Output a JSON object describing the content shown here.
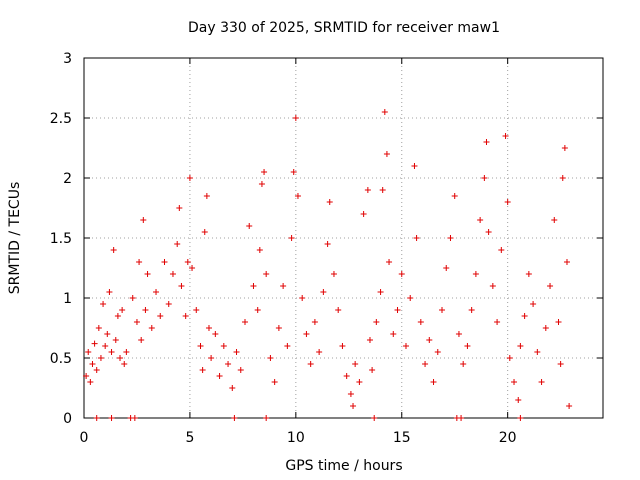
{
  "chart_data": {
    "type": "scatter",
    "title": "Day 330 of 2025, SRMTID for receiver maw1",
    "xlabel": "GPS time / hours",
    "ylabel": "SRMTID / TECUs",
    "xlim": [
      0,
      24.5
    ],
    "ylim": [
      0,
      3
    ],
    "xticks": [
      0,
      5,
      10,
      15,
      20
    ],
    "xtick_labels": [
      "0",
      "5",
      "10",
      "15",
      "20"
    ],
    "yticks": [
      0,
      0.5,
      1,
      1.5,
      2,
      2.5,
      3
    ],
    "ytick_labels": [
      "0",
      "0.5",
      "1",
      "1.5",
      "2",
      "2.5",
      "3"
    ],
    "grid": true,
    "marker": "+",
    "series": [
      {
        "name": "SRMTID",
        "color": "#e00000",
        "points": [
          [
            0.1,
            0.35
          ],
          [
            0.2,
            0.55
          ],
          [
            0.3,
            0.3
          ],
          [
            0.4,
            0.45
          ],
          [
            0.5,
            0.62
          ],
          [
            0.6,
            0.4
          ],
          [
            0.7,
            0.75
          ],
          [
            0.8,
            0.5
          ],
          [
            0.9,
            0.95
          ],
          [
            1.0,
            0.6
          ],
          [
            1.1,
            0.7
          ],
          [
            1.2,
            1.05
          ],
          [
            1.3,
            0.55
          ],
          [
            1.4,
            1.4
          ],
          [
            1.5,
            0.65
          ],
          [
            1.6,
            0.85
          ],
          [
            1.7,
            0.5
          ],
          [
            1.8,
            0.9
          ],
          [
            1.9,
            0.45
          ],
          [
            2.0,
            0.55
          ],
          [
            2.3,
            1.0
          ],
          [
            2.5,
            0.8
          ],
          [
            2.6,
            1.3
          ],
          [
            2.7,
            0.65
          ],
          [
            2.8,
            1.65
          ],
          [
            2.9,
            0.9
          ],
          [
            3.0,
            1.2
          ],
          [
            3.2,
            0.75
          ],
          [
            3.4,
            1.05
          ],
          [
            3.6,
            0.85
          ],
          [
            3.8,
            1.3
          ],
          [
            4.0,
            0.95
          ],
          [
            4.2,
            1.2
          ],
          [
            4.4,
            1.45
          ],
          [
            4.5,
            1.75
          ],
          [
            4.6,
            1.1
          ],
          [
            4.8,
            0.85
          ],
          [
            4.9,
            1.3
          ],
          [
            5.0,
            2.0
          ],
          [
            5.1,
            1.25
          ],
          [
            5.3,
            0.9
          ],
          [
            5.5,
            0.6
          ],
          [
            5.6,
            0.4
          ],
          [
            5.7,
            1.55
          ],
          [
            5.8,
            1.85
          ],
          [
            5.9,
            0.75
          ],
          [
            6.0,
            0.5
          ],
          [
            6.2,
            0.7
          ],
          [
            6.4,
            0.35
          ],
          [
            6.6,
            0.6
          ],
          [
            6.8,
            0.45
          ],
          [
            7.0,
            0.25
          ],
          [
            7.2,
            0.55
          ],
          [
            7.4,
            0.4
          ],
          [
            7.6,
            0.8
          ],
          [
            7.8,
            1.6
          ],
          [
            8.0,
            1.1
          ],
          [
            8.2,
            0.9
          ],
          [
            8.3,
            1.4
          ],
          [
            8.4,
            1.95
          ],
          [
            8.5,
            2.05
          ],
          [
            8.6,
            1.2
          ],
          [
            8.8,
            0.5
          ],
          [
            9.0,
            0.3
          ],
          [
            9.2,
            0.75
          ],
          [
            9.4,
            1.1
          ],
          [
            9.6,
            0.6
          ],
          [
            9.8,
            1.5
          ],
          [
            9.9,
            2.05
          ],
          [
            10.0,
            2.5
          ],
          [
            10.1,
            1.85
          ],
          [
            10.3,
            1.0
          ],
          [
            10.5,
            0.7
          ],
          [
            10.7,
            0.45
          ],
          [
            10.9,
            0.8
          ],
          [
            11.1,
            0.55
          ],
          [
            11.3,
            1.05
          ],
          [
            11.5,
            1.45
          ],
          [
            11.6,
            1.8
          ],
          [
            11.8,
            1.2
          ],
          [
            12.0,
            0.9
          ],
          [
            12.2,
            0.6
          ],
          [
            12.4,
            0.35
          ],
          [
            12.6,
            0.2
          ],
          [
            12.7,
            0.1
          ],
          [
            12.8,
            0.45
          ],
          [
            13.0,
            0.3
          ],
          [
            13.2,
            1.7
          ],
          [
            13.4,
            1.9
          ],
          [
            13.5,
            0.65
          ],
          [
            13.6,
            0.4
          ],
          [
            13.8,
            0.8
          ],
          [
            14.0,
            1.05
          ],
          [
            14.1,
            1.9
          ],
          [
            14.2,
            2.55
          ],
          [
            14.3,
            2.2
          ],
          [
            14.4,
            1.3
          ],
          [
            14.6,
            0.7
          ],
          [
            14.8,
            0.9
          ],
          [
            15.0,
            1.2
          ],
          [
            15.2,
            0.6
          ],
          [
            15.4,
            1.0
          ],
          [
            15.6,
            2.1
          ],
          [
            15.7,
            1.5
          ],
          [
            15.9,
            0.8
          ],
          [
            16.1,
            0.45
          ],
          [
            16.3,
            0.65
          ],
          [
            16.5,
            0.3
          ],
          [
            16.7,
            0.55
          ],
          [
            16.9,
            0.9
          ],
          [
            17.1,
            1.25
          ],
          [
            17.3,
            1.5
          ],
          [
            17.5,
            1.85
          ],
          [
            17.7,
            0.7
          ],
          [
            17.9,
            0.45
          ],
          [
            18.1,
            0.6
          ],
          [
            18.3,
            0.9
          ],
          [
            18.5,
            1.2
          ],
          [
            18.7,
            1.65
          ],
          [
            18.9,
            2.0
          ],
          [
            19.0,
            2.3
          ],
          [
            19.1,
            1.55
          ],
          [
            19.3,
            1.1
          ],
          [
            19.5,
            0.8
          ],
          [
            19.7,
            1.4
          ],
          [
            19.9,
            2.35
          ],
          [
            20.0,
            1.8
          ],
          [
            20.1,
            0.5
          ],
          [
            20.3,
            0.3
          ],
          [
            20.5,
            0.15
          ],
          [
            20.6,
            0.6
          ],
          [
            20.8,
            0.85
          ],
          [
            21.0,
            1.2
          ],
          [
            21.2,
            0.95
          ],
          [
            21.4,
            0.55
          ],
          [
            21.6,
            0.3
          ],
          [
            21.8,
            0.75
          ],
          [
            22.0,
            1.1
          ],
          [
            22.2,
            1.65
          ],
          [
            22.4,
            0.8
          ],
          [
            22.5,
            0.45
          ],
          [
            22.6,
            2.0
          ],
          [
            22.7,
            2.25
          ],
          [
            22.8,
            1.3
          ],
          [
            22.9,
            0.1
          ],
          [
            0.6,
            0.0
          ],
          [
            1.3,
            0.0
          ],
          [
            2.2,
            0.0
          ],
          [
            2.4,
            0.0
          ],
          [
            7.1,
            0.0
          ],
          [
            8.6,
            0.0
          ],
          [
            13.7,
            0.0
          ],
          [
            17.6,
            0.0
          ],
          [
            17.8,
            0.0
          ],
          [
            20.6,
            0.0
          ]
        ]
      }
    ]
  }
}
